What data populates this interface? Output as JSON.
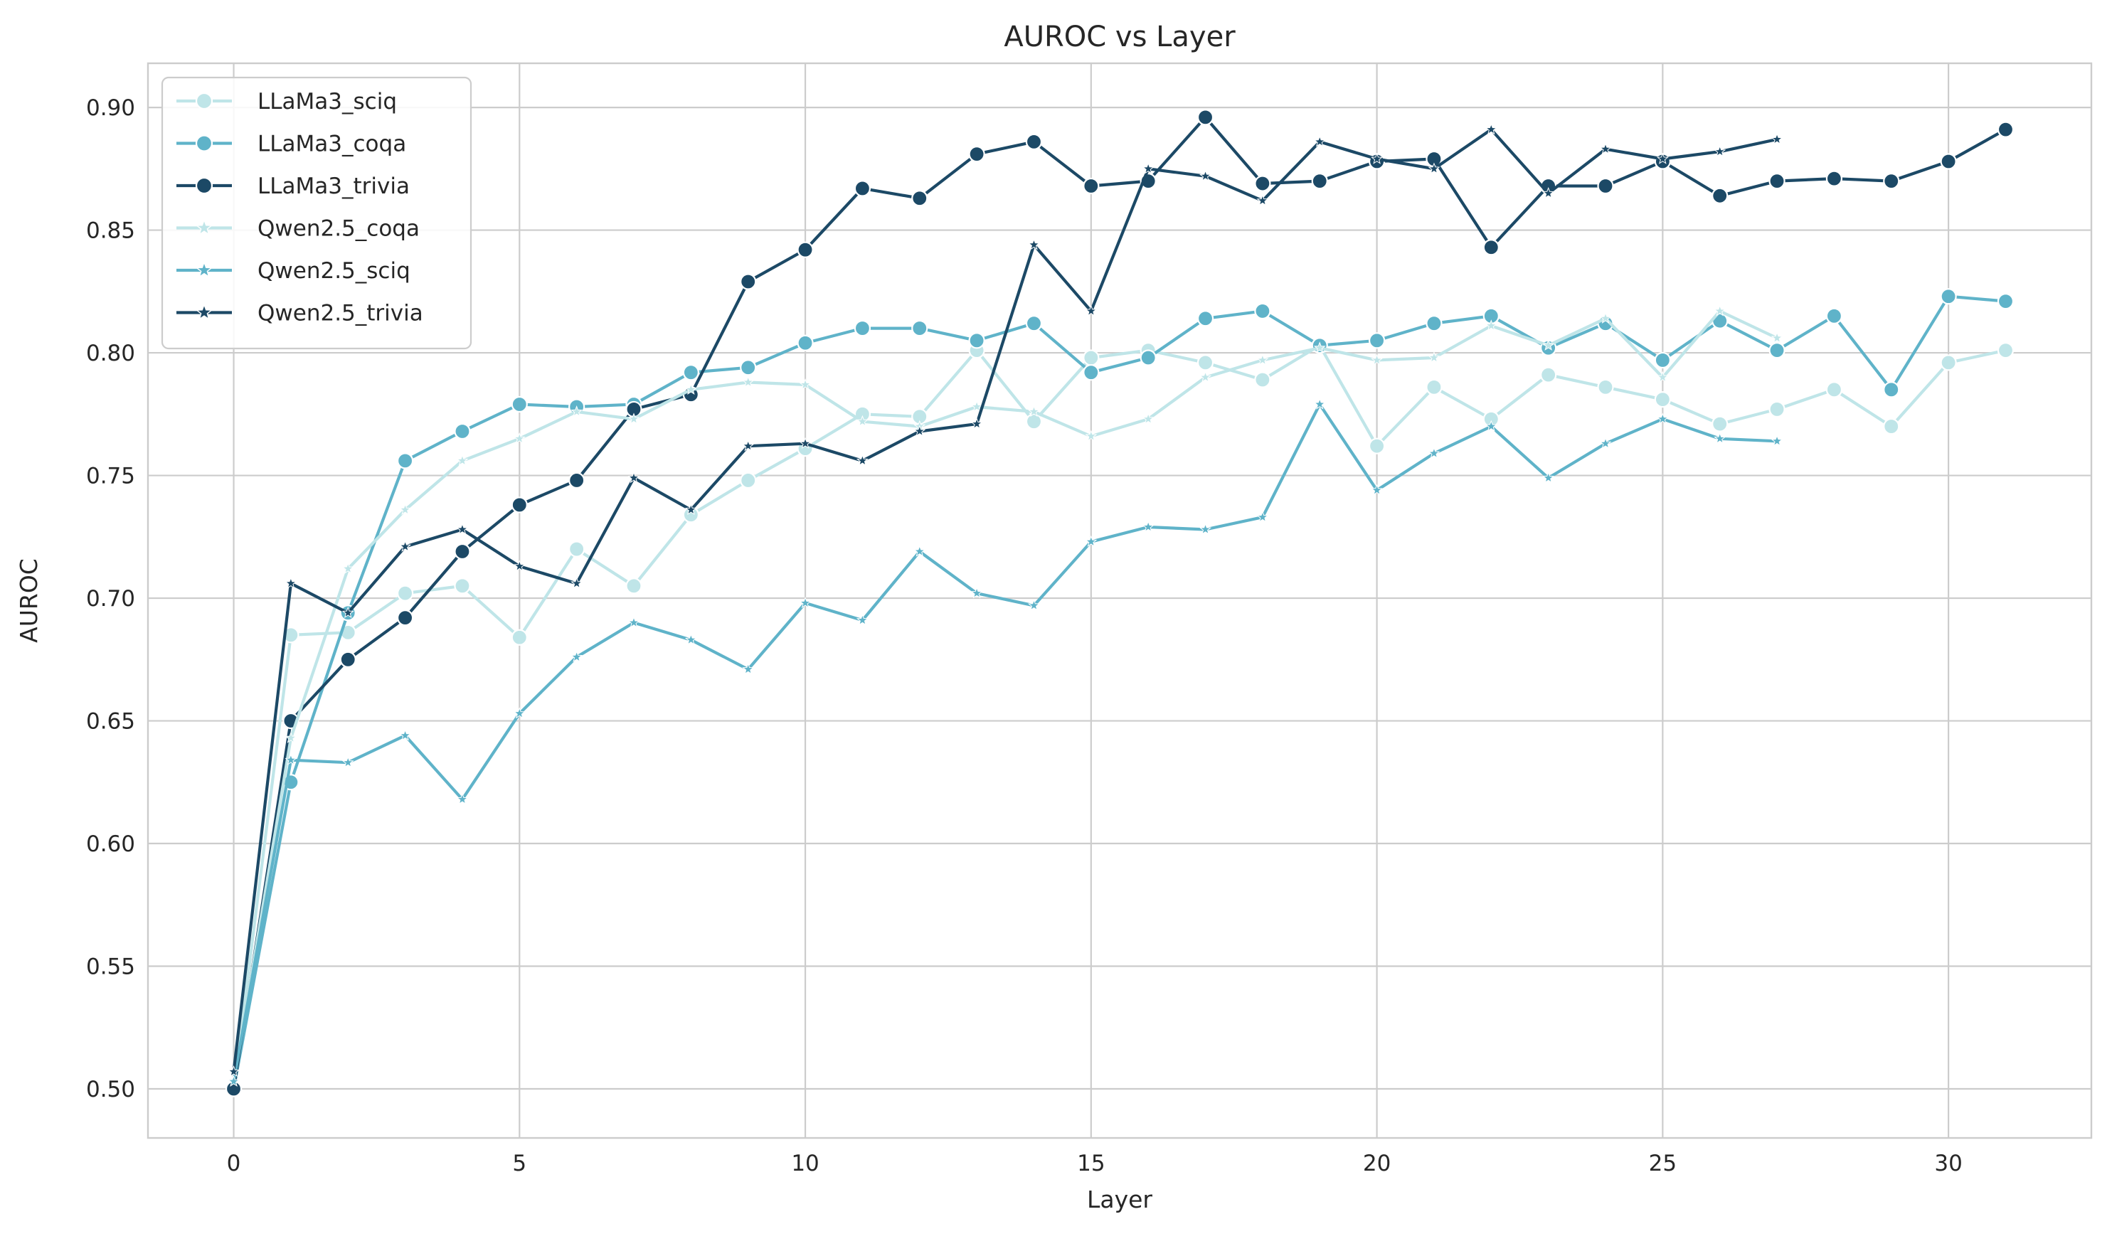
{
  "chart_data": {
    "type": "line",
    "title": "AUROC vs Layer",
    "xlabel": "Layer",
    "ylabel": "AUROC",
    "xlim": [
      -1.5,
      32.5
    ],
    "ylim": [
      0.48,
      0.918
    ],
    "xticks": [
      0,
      5,
      10,
      15,
      20,
      25,
      30
    ],
    "yticks": [
      0.5,
      0.55,
      0.6,
      0.65,
      0.7,
      0.75,
      0.8,
      0.85,
      0.9
    ],
    "grid": true,
    "legend_position": "top-left",
    "series": [
      {
        "name": "LLaMa3_sciq",
        "color": "#bfe5e8",
        "marker": "circle",
        "x": [
          0,
          1,
          2,
          3,
          4,
          5,
          6,
          7,
          8,
          9,
          10,
          11,
          12,
          13,
          14,
          15,
          16,
          17,
          18,
          19,
          20,
          21,
          22,
          23,
          24,
          25,
          26,
          27,
          28,
          29,
          30,
          31
        ],
        "y": [
          0.5,
          0.685,
          0.686,
          0.702,
          0.705,
          0.684,
          0.72,
          0.705,
          0.734,
          0.748,
          0.761,
          0.775,
          0.774,
          0.801,
          0.772,
          0.798,
          0.801,
          0.796,
          0.789,
          0.803,
          0.762,
          0.786,
          0.773,
          0.791,
          0.786,
          0.781,
          0.771,
          0.777,
          0.785,
          0.77,
          0.796,
          0.801
        ]
      },
      {
        "name": "LLaMa3_coqa",
        "color": "#5fb3c9",
        "marker": "circle",
        "x": [
          0,
          1,
          2,
          3,
          4,
          5,
          6,
          7,
          8,
          9,
          10,
          11,
          12,
          13,
          14,
          15,
          16,
          17,
          18,
          19,
          20,
          21,
          22,
          23,
          24,
          25,
          26,
          27,
          28,
          29,
          30,
          31
        ],
        "y": [
          0.5,
          0.625,
          0.694,
          0.756,
          0.768,
          0.779,
          0.778,
          0.779,
          0.792,
          0.794,
          0.804,
          0.81,
          0.81,
          0.805,
          0.812,
          0.792,
          0.798,
          0.814,
          0.817,
          0.803,
          0.805,
          0.812,
          0.815,
          0.802,
          0.812,
          0.797,
          0.813,
          0.801,
          0.815,
          0.785,
          0.823,
          0.821
        ]
      },
      {
        "name": "LLaMa3_trivia",
        "color": "#1c4966",
        "marker": "circle",
        "x": [
          0,
          1,
          2,
          3,
          4,
          5,
          6,
          7,
          8,
          9,
          10,
          11,
          12,
          13,
          14,
          15,
          16,
          17,
          18,
          19,
          20,
          21,
          22,
          23,
          24,
          25,
          26,
          27,
          28,
          29,
          30,
          31
        ],
        "y": [
          0.5,
          0.65,
          0.675,
          0.692,
          0.719,
          0.738,
          0.748,
          0.777,
          0.783,
          0.829,
          0.842,
          0.867,
          0.863,
          0.881,
          0.886,
          0.868,
          0.87,
          0.896,
          0.869,
          0.87,
          0.878,
          0.879,
          0.843,
          0.868,
          0.868,
          0.878,
          0.864,
          0.87,
          0.871,
          0.87,
          0.878,
          0.891
        ]
      },
      {
        "name": "Qwen2.5_coqa",
        "color": "#bfe5e8",
        "marker": "star",
        "x": [
          0,
          1,
          2,
          3,
          4,
          5,
          6,
          7,
          8,
          9,
          10,
          11,
          12,
          13,
          14,
          15,
          16,
          17,
          18,
          19,
          20,
          21,
          22,
          23,
          24,
          25,
          26,
          27
        ],
        "y": [
          0.503,
          0.643,
          0.712,
          0.736,
          0.756,
          0.765,
          0.776,
          0.773,
          0.785,
          0.788,
          0.787,
          0.772,
          0.77,
          0.778,
          0.776,
          0.766,
          0.773,
          0.79,
          0.797,
          0.802,
          0.797,
          0.798,
          0.811,
          0.803,
          0.814,
          0.79,
          0.817,
          0.806
        ]
      },
      {
        "name": "Qwen2.5_sciq",
        "color": "#5fb3c9",
        "marker": "star",
        "x": [
          0,
          1,
          2,
          3,
          4,
          5,
          6,
          7,
          8,
          9,
          10,
          11,
          12,
          13,
          14,
          15,
          16,
          17,
          18,
          19,
          20,
          21,
          22,
          23,
          24,
          25,
          26,
          27
        ],
        "y": [
          0.503,
          0.634,
          0.633,
          0.644,
          0.618,
          0.653,
          0.676,
          0.69,
          0.683,
          0.671,
          0.698,
          0.691,
          0.719,
          0.702,
          0.697,
          0.723,
          0.729,
          0.728,
          0.733,
          0.779,
          0.744,
          0.759,
          0.77,
          0.749,
          0.763,
          0.773,
          0.765,
          0.764
        ]
      },
      {
        "name": "Qwen2.5_trivia",
        "color": "#1c4966",
        "marker": "star",
        "x": [
          0,
          1,
          2,
          3,
          4,
          5,
          6,
          7,
          8,
          9,
          10,
          11,
          12,
          13,
          14,
          15,
          16,
          17,
          18,
          19,
          20,
          21,
          22,
          23,
          24,
          25,
          26,
          27
        ],
        "y": [
          0.507,
          0.706,
          0.694,
          0.721,
          0.728,
          0.713,
          0.706,
          0.749,
          0.736,
          0.762,
          0.763,
          0.756,
          0.768,
          0.771,
          0.844,
          0.817,
          0.875,
          0.872,
          0.862,
          0.886,
          0.879,
          0.875,
          0.891,
          0.865,
          0.883,
          0.879,
          0.882,
          0.887
        ]
      }
    ]
  }
}
